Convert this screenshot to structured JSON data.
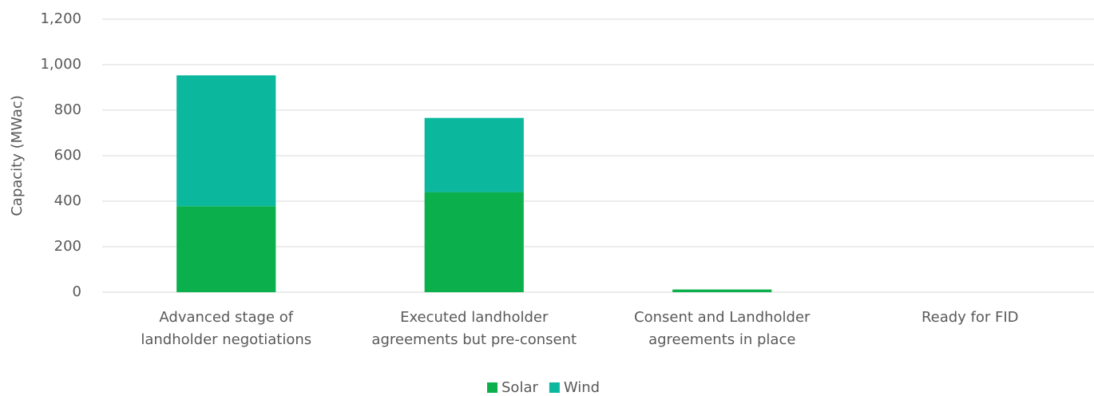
{
  "chart_data": {
    "type": "stacked_bar",
    "y_label": "Capacity (MWac)",
    "categories": [
      "Advanced stage of\nlandholder negotiations",
      "Executed landholder\nagreements but pre-consent",
      "Consent and Landholder\nagreements in place",
      "Ready for FID"
    ],
    "series": [
      {
        "name": "Solar",
        "color": "#0bb04c",
        "values": [
          378,
          440,
          12,
          0
        ]
      },
      {
        "name": "Wind",
        "color": "#0bb89e",
        "values": [
          575,
          326,
          0,
          0
        ]
      }
    ],
    "ylim": [
      0,
      1200
    ],
    "yticks": [
      0,
      200,
      400,
      600,
      800,
      {
        "value": 1000,
        "label": "1,000"
      },
      {
        "value": 1200,
        "label": "1,200"
      }
    ],
    "grid": true,
    "legend": "bottom"
  }
}
